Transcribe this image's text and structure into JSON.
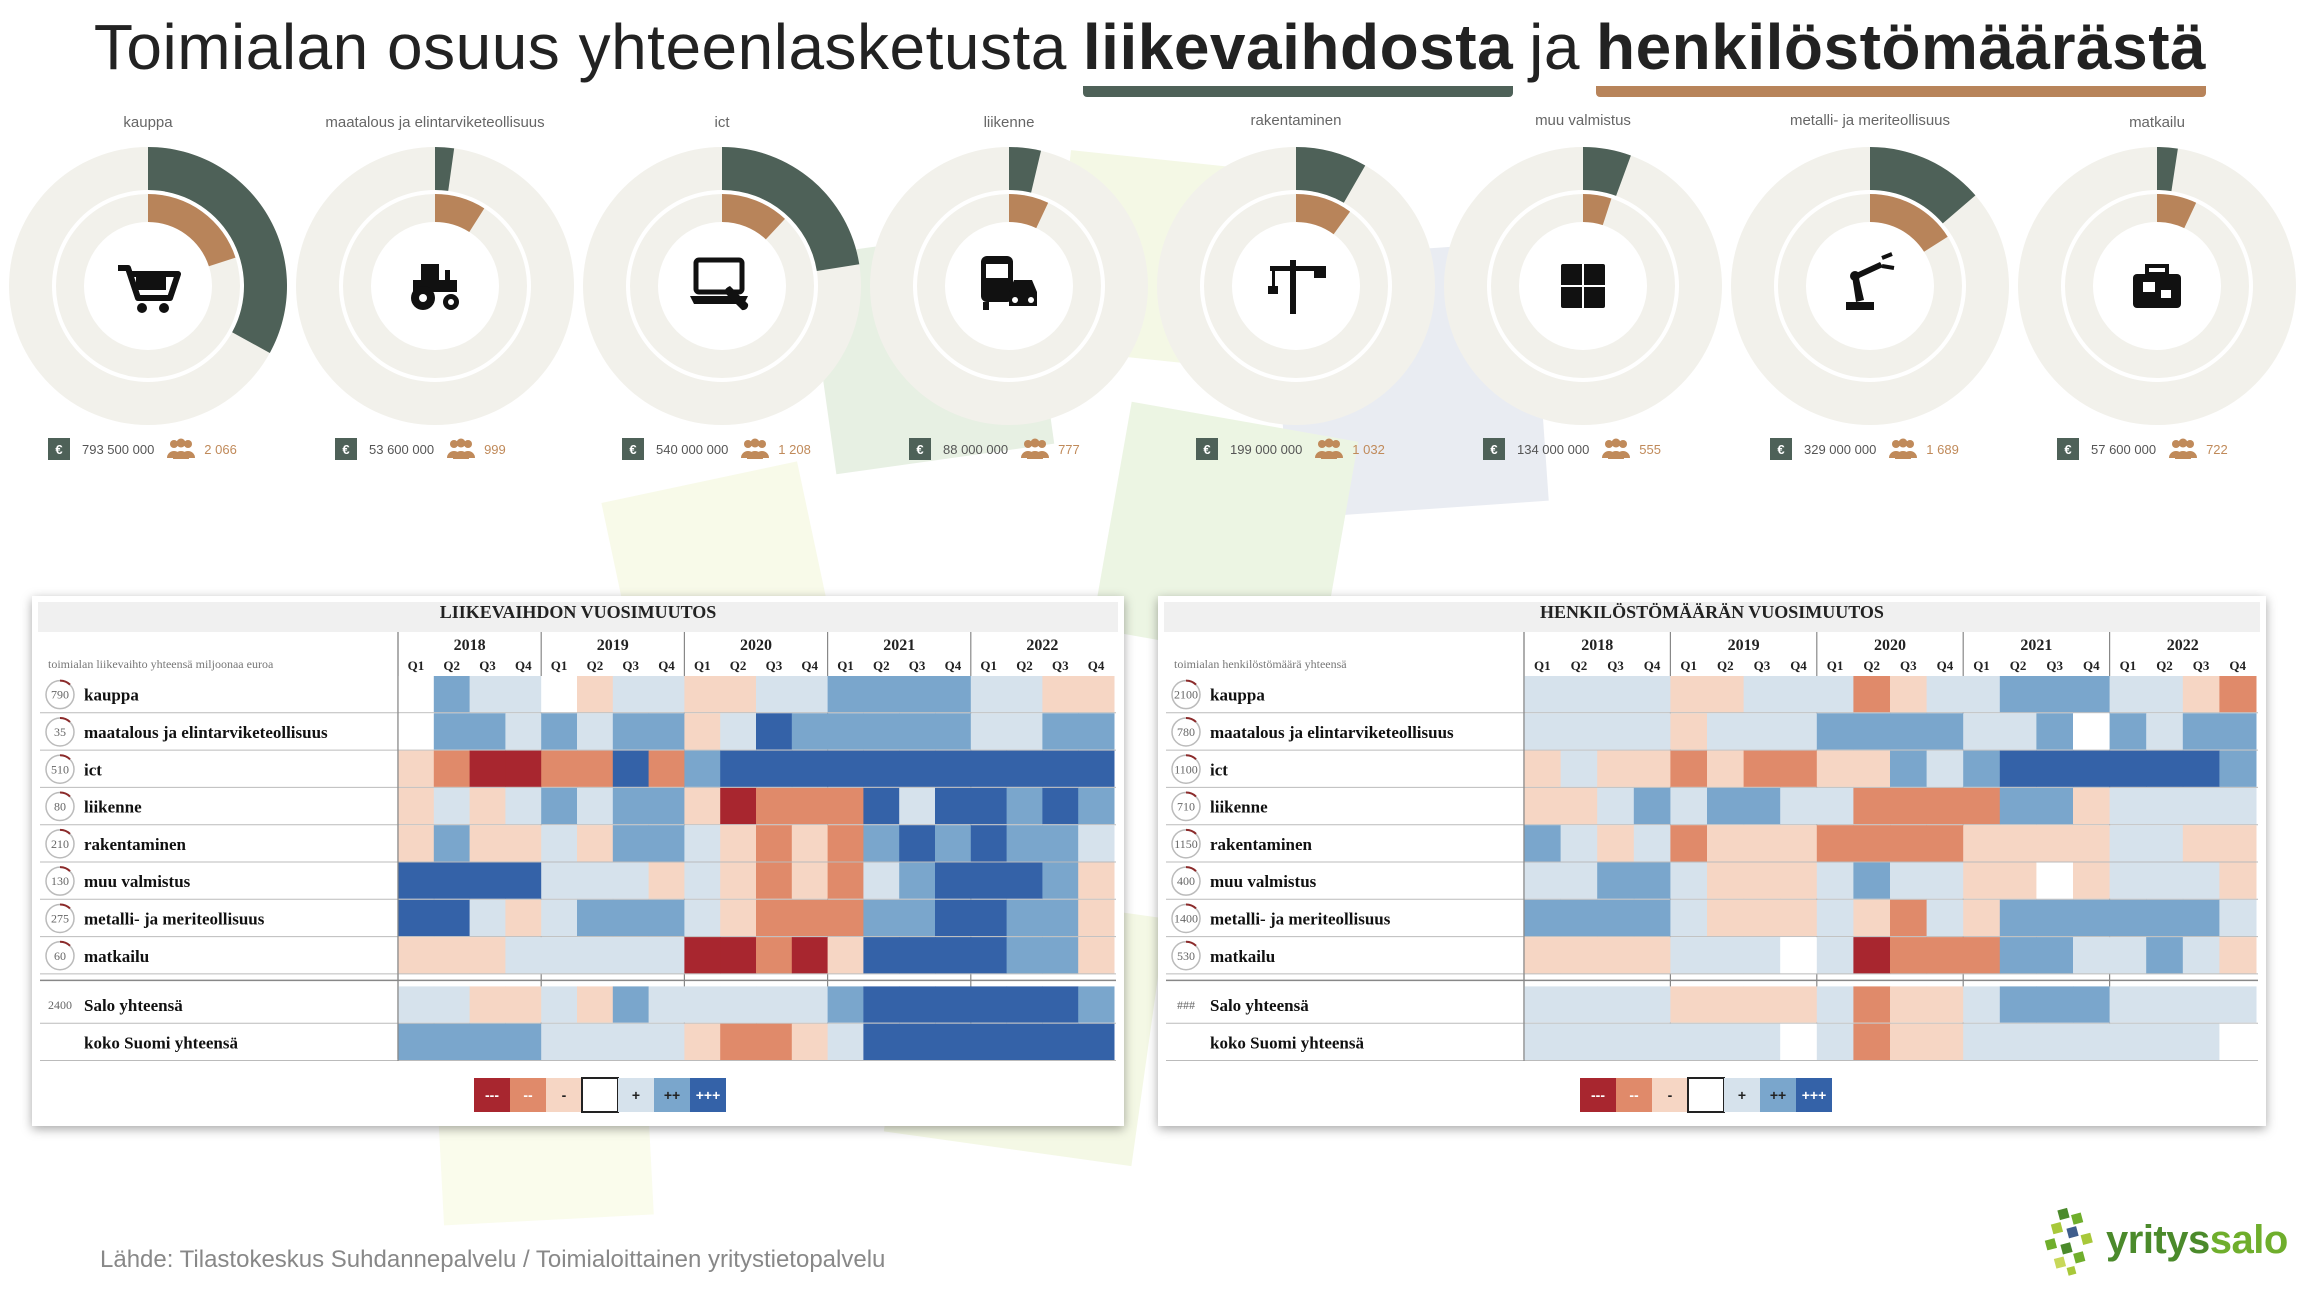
{
  "title": {
    "part1": "Toimialan osuus yhteenlasketusta",
    "highlight1": "liikevaihdosta",
    "part2": "ja",
    "highlight2": "henkilöstömäärästä"
  },
  "colors": {
    "revenue": "#4e6158",
    "employees": "#b8845a",
    "track": "#f2f1eb"
  },
  "donuts": [
    {
      "label": "kauppa",
      "icon": "cart-icon",
      "revenue": "793 500 000",
      "employees": "2 066",
      "revenue_share": 0.33,
      "employee_share": 0.2
    },
    {
      "label": "maatalous ja elintarviketeollisuus",
      "icon": "tractor-icon",
      "revenue": "53 600 000",
      "employees": "999",
      "revenue_share": 0.022,
      "employee_share": 0.09
    },
    {
      "label": "ict",
      "icon": "laptop-wrench-icon",
      "revenue": "540 000 000",
      "employees": "1 208",
      "revenue_share": 0.225,
      "employee_share": 0.12
    },
    {
      "label": "liikenne",
      "icon": "bus-car-icon",
      "revenue": "88 000 000",
      "employees": "777",
      "revenue_share": 0.037,
      "employee_share": 0.07
    },
    {
      "label": "rakentaminen",
      "icon": "crane-icon",
      "revenue": "199 000 000",
      "employees": "1 032",
      "revenue_share": 0.083,
      "employee_share": 0.1
    },
    {
      "label": "muu valmistus",
      "icon": "factory-icon",
      "revenue": "134 000 000",
      "employees": "555",
      "revenue_share": 0.056,
      "employee_share": 0.05
    },
    {
      "label": "metalli- ja meriteollisuus",
      "icon": "robot-arm-icon",
      "revenue": "329 000 000",
      "employees": "1 689",
      "revenue_share": 0.137,
      "employee_share": 0.16
    },
    {
      "label": "matkailu",
      "icon": "luggage-icon",
      "revenue": "57 600 000",
      "employees": "722",
      "revenue_share": 0.024,
      "employee_share": 0.07
    }
  ],
  "chart_data": [
    {
      "type": "pie",
      "title": "Toimialan osuus yhteenlasketusta liikevaihdosta ja henkilöstömäärästä",
      "series": [
        {
          "name": "liikevaihto",
          "categories": [
            "kauppa",
            "maatalous ja elintarviketeollisuus",
            "ict",
            "liikenne",
            "rakentaminen",
            "muu valmistus",
            "metalli- ja meriteollisuus",
            "matkailu"
          ],
          "values": [
            793500000,
            53600000,
            540000000,
            88000000,
            199000000,
            134000000,
            329000000,
            57600000
          ]
        },
        {
          "name": "henkilöstömäärä",
          "categories": [
            "kauppa",
            "maatalous ja elintarviketeollisuus",
            "ict",
            "liikenne",
            "rakentaminen",
            "muu valmistus",
            "metalli- ja meriteollisuus",
            "matkailu"
          ],
          "values": [
            2066,
            999,
            1208,
            777,
            1032,
            555,
            1689,
            722
          ]
        }
      ]
    },
    {
      "type": "heatmap",
      "title": "LIIKEVAIHDON VUOSIMUUTOS",
      "subtitle": "toimialan liikevaihto yhteensä miljoonaa euroa",
      "years": [
        "2018",
        "2019",
        "2020",
        "2021",
        "2022"
      ],
      "quarters": [
        "Q1",
        "Q2",
        "Q3",
        "Q4"
      ],
      "rows": [
        {
          "label": "kauppa",
          "badge": "790",
          "values": [
            0,
            2,
            1,
            1,
            0,
            -1,
            1,
            1,
            -1,
            -1,
            1,
            1,
            2,
            2,
            2,
            2,
            1,
            1,
            -1,
            -1
          ]
        },
        {
          "label": "maatalous ja elintarviketeollisuus",
          "badge": "35",
          "values": [
            0,
            2,
            2,
            1,
            2,
            1,
            2,
            2,
            -1,
            1,
            3,
            2,
            2,
            2,
            2,
            2,
            1,
            1,
            2,
            2
          ]
        },
        {
          "label": "ict",
          "badge": "510",
          "values": [
            -1,
            -2,
            -3,
            -3,
            -2,
            -2,
            3,
            -2,
            2,
            3,
            3,
            3,
            3,
            3,
            3,
            3,
            3,
            3,
            3,
            3
          ]
        },
        {
          "label": "liikenne",
          "badge": "80",
          "values": [
            -1,
            1,
            -1,
            1,
            2,
            1,
            2,
            2,
            -1,
            -3,
            -2,
            -2,
            -2,
            3,
            1,
            3,
            3,
            2,
            3,
            2
          ]
        },
        {
          "label": "rakentaminen",
          "badge": "210",
          "values": [
            -1,
            2,
            -1,
            -1,
            1,
            -1,
            2,
            2,
            1,
            -1,
            -2,
            -1,
            -2,
            2,
            3,
            2,
            3,
            2,
            2,
            1
          ]
        },
        {
          "label": "muu valmistus",
          "badge": "130",
          "values": [
            3,
            3,
            3,
            3,
            1,
            1,
            1,
            -1,
            1,
            -1,
            -2,
            -1,
            -2,
            1,
            2,
            3,
            3,
            3,
            2,
            -1
          ]
        },
        {
          "label": "metalli- ja meriteollisuus",
          "badge": "275",
          "values": [
            3,
            3,
            1,
            -1,
            1,
            2,
            2,
            2,
            1,
            -1,
            -2,
            -2,
            -2,
            2,
            2,
            3,
            3,
            2,
            2,
            -1
          ]
        },
        {
          "label": "matkailu",
          "badge": "60",
          "values": [
            -1,
            -1,
            -1,
            1,
            1,
            1,
            1,
            1,
            -3,
            -3,
            -2,
            -3,
            -1,
            3,
            3,
            3,
            3,
            2,
            2,
            -1
          ]
        }
      ],
      "totals": [
        {
          "label": "Salo yhteensä",
          "badge": "2400",
          "values": [
            1,
            1,
            -1,
            -1,
            1,
            -1,
            2,
            1,
            1,
            1,
            1,
            1,
            2,
            3,
            3,
            3,
            3,
            3,
            3,
            2
          ]
        },
        {
          "label": "koko Suomi yhteensä",
          "badge": "",
          "values": [
            2,
            2,
            2,
            2,
            1,
            1,
            1,
            1,
            -1,
            -2,
            -2,
            -1,
            1,
            3,
            3,
            3,
            3,
            3,
            3,
            3
          ]
        }
      ],
      "legend": [
        "---",
        "--",
        "-",
        "",
        "+",
        "++",
        "+++"
      ]
    },
    {
      "type": "heatmap",
      "title": "HENKILÖSTÖMÄÄRÄN VUOSIMUUTOS",
      "subtitle": "toimialan henkilöstömäärä yhteensä",
      "years": [
        "2018",
        "2019",
        "2020",
        "2021",
        "2022"
      ],
      "quarters": [
        "Q1",
        "Q2",
        "Q3",
        "Q4"
      ],
      "rows": [
        {
          "label": "kauppa",
          "badge": "2100",
          "values": [
            1,
            1,
            1,
            1,
            -1,
            -1,
            1,
            1,
            1,
            -2,
            -1,
            1,
            1,
            2,
            2,
            2,
            1,
            1,
            -1,
            -2
          ]
        },
        {
          "label": "maatalous ja elintarviketeollisuus",
          "badge": "780",
          "values": [
            1,
            1,
            1,
            1,
            -1,
            1,
            1,
            1,
            2,
            2,
            2,
            2,
            1,
            1,
            2,
            0,
            2,
            1,
            2,
            2
          ]
        },
        {
          "label": "ict",
          "badge": "1100",
          "values": [
            -1,
            1,
            -1,
            -1,
            -2,
            -1,
            -2,
            -2,
            -1,
            -1,
            2,
            1,
            2,
            3,
            3,
            3,
            3,
            3,
            3,
            2
          ]
        },
        {
          "label": "liikenne",
          "badge": "710",
          "values": [
            -1,
            -1,
            1,
            2,
            1,
            2,
            2,
            1,
            1,
            -2,
            -2,
            -2,
            -2,
            2,
            2,
            -1,
            1,
            1,
            1,
            1
          ]
        },
        {
          "label": "rakentaminen",
          "badge": "1150",
          "values": [
            2,
            1,
            -1,
            1,
            -2,
            -1,
            -1,
            -1,
            -2,
            -2,
            -2,
            -2,
            -1,
            -1,
            -1,
            -1,
            1,
            1,
            -1,
            -1
          ]
        },
        {
          "label": "muu valmistus",
          "badge": "400",
          "values": [
            1,
            1,
            2,
            2,
            1,
            -1,
            -1,
            -1,
            1,
            2,
            1,
            1,
            -1,
            -1,
            0,
            -1,
            1,
            1,
            1,
            -1
          ]
        },
        {
          "label": "metalli- ja meriteollisuus",
          "badge": "1400",
          "values": [
            2,
            2,
            2,
            2,
            1,
            -1,
            -1,
            -1,
            1,
            -1,
            -2,
            1,
            -1,
            2,
            2,
            2,
            2,
            2,
            2,
            1
          ]
        },
        {
          "label": "matkailu",
          "badge": "530",
          "values": [
            -1,
            -1,
            -1,
            -1,
            1,
            1,
            1,
            0,
            1,
            -3,
            -2,
            -2,
            -2,
            2,
            2,
            1,
            1,
            2,
            1,
            -1
          ]
        }
      ],
      "totals": [
        {
          "label": "Salo yhteensä",
          "badge": "###",
          "values": [
            1,
            1,
            1,
            1,
            -1,
            -1,
            -1,
            -1,
            1,
            -2,
            -1,
            -1,
            1,
            2,
            2,
            2,
            1,
            1,
            1,
            1
          ]
        },
        {
          "label": "koko Suomi yhteensä",
          "badge": "",
          "values": [
            1,
            1,
            1,
            1,
            1,
            1,
            1,
            0,
            1,
            -2,
            -1,
            -1,
            1,
            1,
            1,
            1,
            1,
            1,
            1,
            0
          ]
        }
      ],
      "legend": [
        "---",
        "--",
        "-",
        "",
        "+",
        "++",
        "+++"
      ]
    }
  ],
  "heat_colors": {
    "-3": "#a8262f",
    "-2": "#e08a6a",
    "-1": "#f6d6c4",
    "0": "#ffffff",
    "1": "#d6e2ec",
    "2": "#7aa6cc",
    "3": "#3462a8"
  },
  "source": "Lähde: Tilastokeskus Suhdannepalvelu / Toimialoittainen yritystietopalvelu",
  "logo": {
    "text1": "yritys",
    "text2": "salo"
  }
}
